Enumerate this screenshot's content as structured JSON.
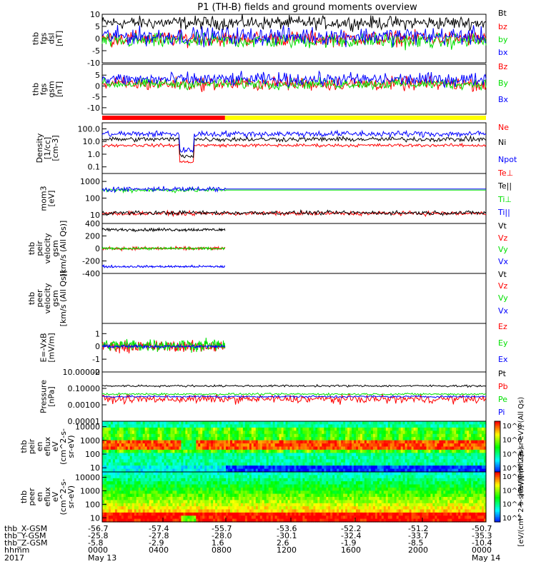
{
  "title": "P1 (TH-B) fields and ground moments overview",
  "colors": {
    "black": "#000000",
    "red": "#ff0000",
    "green": "#00e000",
    "blue": "#0000ff",
    "yellow": "#ffff00",
    "fgs_bar": "#ff0000"
  },
  "chart_data": [
    {
      "id": "fgs_dsl",
      "type": "line",
      "ylabel": [
        "thb",
        "fgs",
        "dsl",
        "[nT]"
      ],
      "yticks": [
        "10",
        "5",
        "0",
        "-5",
        "-10"
      ],
      "ylim": [
        -10,
        10
      ],
      "log": false,
      "series": [
        {
          "name": "Bt",
          "color": "#000000",
          "level": 6.5,
          "noise": 2.2
        },
        {
          "name": "bz",
          "color": "#ff0000",
          "level": 0,
          "noise": 2.5
        },
        {
          "name": "by",
          "color": "#00e000",
          "level": -1,
          "noise": 2.5
        },
        {
          "name": "bx",
          "color": "#0000ff",
          "level": 1,
          "noise": 3.0
        }
      ]
    },
    {
      "id": "fgs_gsm",
      "type": "line",
      "ylabel": [
        "thb",
        "fgs",
        "gsm",
        "[nT]"
      ],
      "yticks": [
        "5",
        "0",
        "-5",
        "-10"
      ],
      "ylim": [
        -13,
        10
      ],
      "log": false,
      "series": [
        {
          "name": "Bz",
          "color": "#ff0000",
          "level": 1,
          "noise": 2.5
        },
        {
          "name": "By",
          "color": "#00e000",
          "level": 1,
          "noise": 2.0
        },
        {
          "name": "Bx",
          "color": "#0000ff",
          "level": 3,
          "noise": 2.5
        }
      ]
    },
    {
      "id": "density",
      "type": "line",
      "ylabel": [
        "Density",
        "[1/cc]",
        "[cm-3]"
      ],
      "yticks": [
        "100.0",
        "10.0",
        "1.0",
        "0.1"
      ],
      "ylim": [
        0.03,
        300
      ],
      "log": true,
      "series": [
        {
          "name": "Ne",
          "color": "#ff0000",
          "level": 5,
          "noise": 0.1
        },
        {
          "name": "Ni",
          "color": "#000000",
          "level": 15,
          "noise": 0.15
        },
        {
          "name": "Npot",
          "color": "#0000ff",
          "level": 40,
          "noise": 0.2
        }
      ]
    },
    {
      "id": "temp",
      "type": "line",
      "ylabel": [
        "mom3",
        "[eV]"
      ],
      "yticks": [
        "1000",
        "100",
        "10"
      ],
      "ylim": [
        3,
        3000
      ],
      "log": true,
      "series": [
        {
          "name": "Te⊥",
          "color": "#ff0000",
          "level": 12,
          "noise": 0.1
        },
        {
          "name": "Te||",
          "color": "#000000",
          "level": 13,
          "noise": 0.1
        },
        {
          "name": "Ti⊥",
          "color": "#00e000",
          "level": 300,
          "noise": 0.1
        },
        {
          "name": "Ti||",
          "color": "#0000ff",
          "level": 350,
          "noise": 0.12
        }
      ]
    },
    {
      "id": "peir_vel",
      "type": "line",
      "ylabel": [
        "thb",
        "peir",
        "velocity",
        "gsm",
        "[km/s (All Qs)]"
      ],
      "yticks": [
        "400",
        "200",
        "0",
        "-200",
        "-400"
      ],
      "ylim": [
        -400,
        400
      ],
      "log": false,
      "series": [
        {
          "name": "Vt",
          "color": "#000000",
          "level": 300,
          "noise": 20
        },
        {
          "name": "Vz",
          "color": "#ff0000",
          "level": 0,
          "noise": 20
        },
        {
          "name": "Vy",
          "color": "#00e000",
          "level": 0,
          "noise": 15
        },
        {
          "name": "Vx",
          "color": "#0000ff",
          "level": -290,
          "noise": 15
        }
      ]
    },
    {
      "id": "peer_vel",
      "type": "line",
      "ylabel": [
        "thb",
        "peer",
        "velocity",
        "gsm",
        "[km/s (All Qs)]"
      ],
      "yticks": [],
      "ylim": [
        -400,
        400
      ],
      "log": false,
      "series": [
        {
          "name": "Vt",
          "color": "#000000"
        },
        {
          "name": "Vz",
          "color": "#ff0000"
        },
        {
          "name": "Vy",
          "color": "#00e000"
        },
        {
          "name": "Vx",
          "color": "#0000ff"
        }
      ]
    },
    {
      "id": "efield",
      "type": "line",
      "ylabel": [
        "E=-VxB",
        "[mV/m]"
      ],
      "yticks": [
        "1",
        "0",
        "-1",
        "-2"
      ],
      "ylim": [
        -2,
        1.8
      ],
      "log": false,
      "series": [
        {
          "name": "Ez",
          "color": "#ff0000",
          "level": 0,
          "noise": 0.35
        },
        {
          "name": "Ey",
          "color": "#00e000",
          "level": 0.1,
          "noise": 0.4
        },
        {
          "name": "Ex",
          "color": "#0000ff",
          "level": 0,
          "noise": 0.1
        }
      ]
    },
    {
      "id": "pressure",
      "type": "line",
      "ylabel": [
        "Pressure",
        "[nPa]"
      ],
      "yticks": [
        "10.00000",
        "0.10000",
        "0.00100",
        "0.00001"
      ],
      "ylim": [
        1e-05,
        10
      ],
      "log": true,
      "series": [
        {
          "name": "Pt",
          "color": "#000000",
          "level": 0.2,
          "noise": 0.1
        },
        {
          "name": "Pb",
          "color": "#ff0000",
          "level": 0.005,
          "noise": 0.4
        },
        {
          "name": "Pe",
          "color": "#00e000",
          "level": 0.02,
          "noise": 0.1
        },
        {
          "name": "Pi",
          "color": "#0000ff",
          "level": 0.01,
          "noise": 0.1
        }
      ]
    },
    {
      "id": "peir_eflux",
      "type": "heatmap",
      "ylabel": [
        "thb",
        "peir",
        "en",
        "eflux",
        "eV",
        "(cm^2-s-",
        "sr-eV)"
      ],
      "yticks": [
        "10000",
        "1000",
        "100",
        "10"
      ],
      "ylim": [
        5,
        25000
      ],
      "log": true
    },
    {
      "id": "peer_eflux",
      "type": "heatmap",
      "ylabel": [
        "thb",
        "peer",
        "en",
        "eflux",
        "eV",
        "(cm^2-s-",
        "sr-eV)"
      ],
      "yticks": [
        "10000",
        "1000",
        "100",
        "10"
      ],
      "ylim": [
        5,
        25000
      ],
      "log": true
    }
  ],
  "colorbars": [
    {
      "label": "[eV/(cm^2-s-sr-eV)] (All Qs)",
      "ticks": [
        "10^8",
        "10^6",
        "10^4",
        "10^2"
      ]
    },
    {
      "label": "[eV/(cm^2-s-sr-eV)] (All Qs)",
      "ticks": [
        "10^8",
        "10^6",
        "10^4",
        "10^2"
      ]
    }
  ],
  "x_axis": {
    "rows": [
      {
        "label": "thb_X-GSM",
        "values": [
          "-56.7",
          "-57.4",
          "-55.7",
          "-53.6",
          "-52.2",
          "-51.2",
          "-50.7"
        ]
      },
      {
        "label": "thb_Y-GSM",
        "values": [
          "-25.8",
          "-27.8",
          "-28.0",
          "-30.1",
          "-32.4",
          "-33.7",
          "-35.3"
        ]
      },
      {
        "label": "thb_Z-GSM",
        "values": [
          "-5.8",
          "-2.9",
          "1.6",
          "2.6",
          "-1.9",
          "-8.5",
          "-10.4"
        ]
      },
      {
        "label": "hhmm",
        "values": [
          "0000",
          "0400",
          "0800",
          "1200",
          "1600",
          "2000",
          "0000"
        ]
      }
    ],
    "year": "2017",
    "date_start": "May 13",
    "date_end": "May 14"
  }
}
